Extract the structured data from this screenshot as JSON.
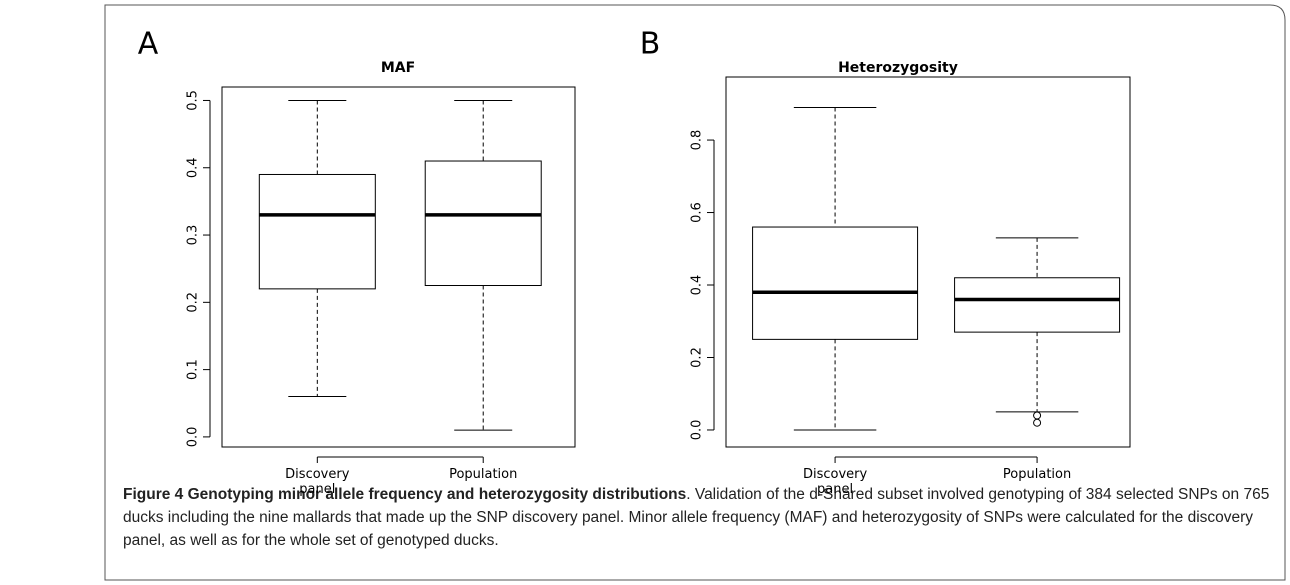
{
  "chart_data": [
    {
      "type": "box",
      "label": "A",
      "title": "MAF",
      "categories": [
        "Discovery panel",
        "Population"
      ],
      "boxes": [
        {
          "low": 0.06,
          "q1": 0.22,
          "median": 0.33,
          "q3": 0.39,
          "high": 0.5,
          "outliers": []
        },
        {
          "low": 0.01,
          "q1": 0.225,
          "median": 0.33,
          "q3": 0.41,
          "high": 0.5,
          "outliers": []
        }
      ],
      "ylim": [
        -0.015,
        0.52
      ],
      "yticks": [
        {
          "value": 0,
          "label": "0.0"
        },
        0.1,
        0.2,
        0.3,
        0.4,
        0.5
      ]
    },
    {
      "type": "box",
      "label": "B",
      "title": "Heterozygosity",
      "categories": [
        "Discovery panel",
        "Population"
      ],
      "boxes": [
        {
          "low": 0,
          "q1": 0.25,
          "median": 0.38,
          "q3": 0.56,
          "high": 0.89,
          "outliers": []
        },
        {
          "low": 0.05,
          "q1": 0.27,
          "median": 0.36,
          "q3": 0.42,
          "high": 0.53,
          "outliers": [
            0.04,
            0.02
          ]
        }
      ],
      "ylim": [
        -0.047,
        0.974
      ],
      "yticks": [
        {
          "value": 0,
          "label": "0.0"
        },
        0.2,
        0.4,
        0.6,
        0.8
      ]
    }
  ],
  "caption": {
    "title": "Figure 4 Genotyping minor allele frequency and heterozygosity distributions",
    "text": ". Validation of the d-Shared subset involved genotyping of 384 selected SNPs on 765 ducks including the nine mallards that made up the SNP discovery panel. Minor allele frequency (MAF) and heterozygosity of SNPs were calculated for the discovery panel, as well as for the whole set of genotyped ducks."
  }
}
